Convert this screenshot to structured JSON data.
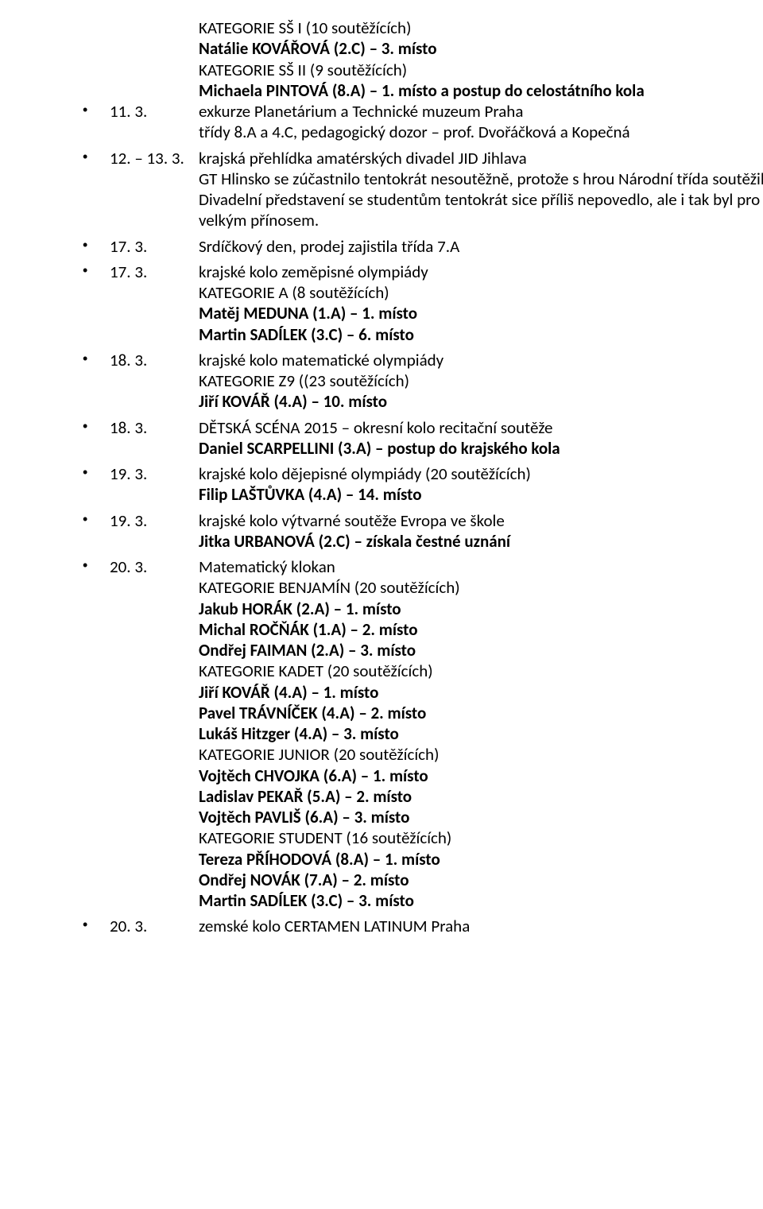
{
  "pre": {
    "lines": [
      {
        "text": "KATEGORIE SŠ I (10 soutěžících)",
        "bold": false
      },
      {
        "text": "Natálie KOVÁŘOVÁ (2.C) – 3. místo",
        "bold": true,
        "indent": true
      },
      {
        "text": "KATEGORIE SŠ II (9 soutěžících)",
        "bold": false
      },
      {
        "text": "Michaela PINTOVÁ (8.A) – 1. místo a postup do celostátního kola",
        "bold": true,
        "indent": true
      }
    ]
  },
  "items": [
    {
      "date": "11. 3.",
      "lines": [
        {
          "text": "exkurze Planetárium a Technické muzeum Praha"
        },
        {
          "text": "třídy 8.A a 4.C, pedagogický dozor – prof. Dvořáčková a Kopečná"
        }
      ]
    },
    {
      "date": "12. – 13. 3.",
      "lines": [
        {
          "text": "krajská přehlídka amatérských divadel JID Jihlava"
        },
        {
          "text": "GT Hlinsko se zúčastnilo tentokrát nesoutěžně, protože s hrou Národní třída soutěžilo už loni. Divadelní představení se studentům tentokrát sice příliš nepovedlo, ale i tak byl pro ně festival velkým přínosem."
        }
      ]
    },
    {
      "date": "17. 3.",
      "lines": [
        {
          "text": "Srdíčkový den, prodej zajistila třída 7.A"
        }
      ]
    },
    {
      "date": "17. 3.",
      "lines": [
        {
          "text": "krajské kolo zeměpisné olympiády"
        },
        {
          "text": "KATEGORIE A (8 soutěžících)"
        },
        {
          "text": "Matěj MEDUNA (1.A) – 1. místo",
          "bold": true,
          "indent": true
        },
        {
          "text": "Martin SADÍLEK (3.C) – 6. místo",
          "bold": true,
          "indent": true
        }
      ]
    },
    {
      "date": "18. 3.",
      "lines": [
        {
          "text": "krajské kolo matematické olympiády"
        },
        {
          "text": "KATEGORIE Z9 ((23 soutěžících)"
        },
        {
          "text": "Jiří KOVÁŘ (4.A) – 10. místo",
          "bold": true,
          "indent": true
        }
      ]
    },
    {
      "date": "18. 3.",
      "lines": [
        {
          "text": "DĚTSKÁ SCÉNA 2015 – okresní kolo recitační soutěže"
        },
        {
          "text": "Daniel SCARPELLINI (3.A) – postup do krajského kola",
          "bold": true,
          "indent": true
        }
      ]
    },
    {
      "date": "19. 3.",
      "lines": [
        {
          "text": "krajské kolo dějepisné olympiády (20 soutěžících)"
        },
        {
          "text": "Filip LAŠTŮVKA (4.A) – 14. místo",
          "bold": true,
          "indent": true
        }
      ]
    },
    {
      "date": "19. 3.",
      "lines": [
        {
          "text": "krajské kolo výtvarné soutěže Evropa ve škole"
        },
        {
          "text": "Jitka URBANOVÁ (2.C) – získala čestné uznání",
          "bold": true,
          "indent": true
        }
      ]
    },
    {
      "date": "20. 3.",
      "lines": [
        {
          "text": "Matematický klokan"
        },
        {
          "text": "KATEGORIE BENJAMÍN (20 soutěžících)"
        },
        {
          "text": "Jakub HORÁK (2.A) – 1. místo",
          "bold": true,
          "indent": true
        },
        {
          "text": "Michal ROČŇÁK (1.A) – 2. místo",
          "bold": true,
          "indent": true
        },
        {
          "text": "Ondřej FAIMAN (2.A) – 3. místo",
          "bold": true,
          "indent": true
        },
        {
          "text": "KATEGORIE KADET (20 soutěžících)"
        },
        {
          "text": "Jiří KOVÁŘ (4.A) – 1. místo",
          "bold": true,
          "indent": true
        },
        {
          "text": "Pavel TRÁVNÍČEK (4.A) – 2. místo",
          "bold": true,
          "indent": true
        },
        {
          "text": "Lukáš Hitzger (4.A) – 3. místo",
          "bold": true,
          "indent": true
        },
        {
          "text": "KATEGORIE JUNIOR (20 soutěžících)"
        },
        {
          "text": "Vojtěch CHVOJKA (6.A) – 1. místo",
          "bold": true,
          "indent": true
        },
        {
          "text": "Ladislav PEKAŘ (5.A) – 2. místo",
          "bold": true,
          "indent": true
        },
        {
          "text": "Vojtěch PAVLIŠ (6.A) – 3. místo",
          "bold": true,
          "indent": true
        },
        {
          "text": "KATEGORIE STUDENT (16 soutěžících)"
        },
        {
          "text": "Tereza PŘÍHODOVÁ (8.A) – 1. místo",
          "bold": true,
          "indent": true
        },
        {
          "text": "Ondřej NOVÁK (7.A) – 2. místo",
          "bold": true,
          "indent": true
        },
        {
          "text": "Martin SADÍLEK (3.C) – 3. místo",
          "bold": true,
          "indent": true
        }
      ]
    },
    {
      "date": "20. 3.",
      "lines": [
        {
          "text": "zemské kolo CERTAMEN LATINUM Praha"
        }
      ]
    }
  ]
}
